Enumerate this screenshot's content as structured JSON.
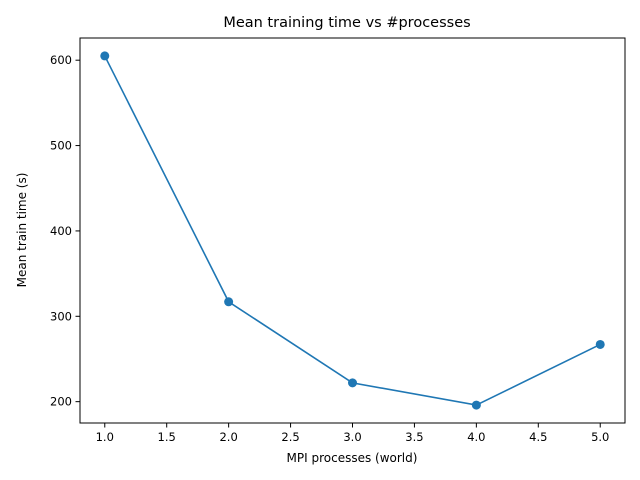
{
  "chart_data": {
    "type": "line",
    "title": "Mean training time vs #processes",
    "xlabel": "MPI processes (world)",
    "ylabel": "Mean train time (s)",
    "x": [
      1,
      2,
      3,
      4,
      5
    ],
    "series": [
      {
        "values": [
          605,
          317,
          222,
          196,
          267
        ],
        "color": "#1f77b4",
        "marker": "circle"
      }
    ],
    "xlim": [
      0.8,
      5.2
    ],
    "ylim": [
      175,
      626
    ],
    "x_ticks": [
      1.0,
      1.5,
      2.0,
      2.5,
      3.0,
      3.5,
      4.0,
      4.5,
      5.0
    ],
    "x_tick_labels": [
      "1.0",
      "1.5",
      "2.0",
      "2.5",
      "3.0",
      "3.5",
      "4.0",
      "4.5",
      "5.0"
    ],
    "y_ticks": [
      200,
      300,
      400,
      500,
      600
    ],
    "y_tick_labels": [
      "200",
      "300",
      "400",
      "500",
      "600"
    ],
    "grid": false,
    "legend": "none"
  }
}
